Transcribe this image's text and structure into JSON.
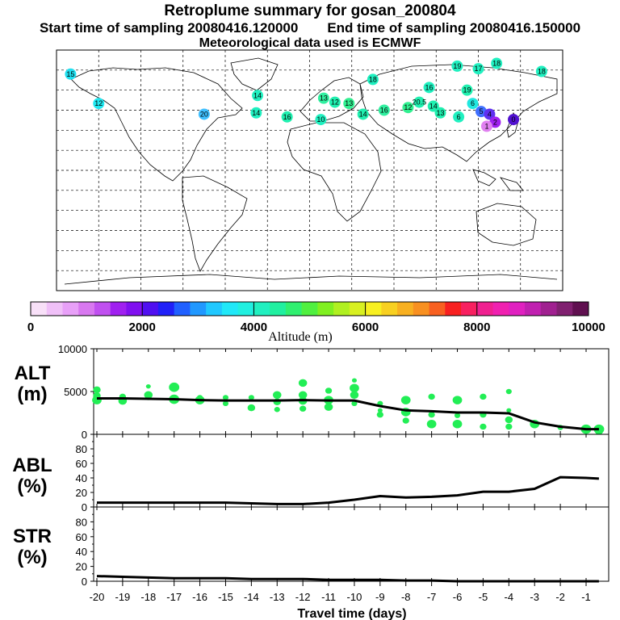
{
  "header": {
    "title": "Retroplume summary for gosan_200804",
    "start_label": "Start time of sampling 20080416.120000",
    "end_label": "End time of sampling 20080416.150000",
    "met_label": "Meteorological data used is ECMWF"
  },
  "colors": {
    "point_green": "#22ee55",
    "line": "#000000",
    "colorbar": [
      "#f8e0f8",
      "#f0c0f8",
      "#e8a0f8",
      "#d878f0",
      "#c050f0",
      "#a020f0",
      "#8010f0",
      "#5010f0",
      "#2020f8",
      "#2060ff",
      "#2098ff",
      "#20c8ff",
      "#20e8f8",
      "#20f0e0",
      "#20f0c0",
      "#20f0a0",
      "#30f070",
      "#50f040",
      "#80f020",
      "#b0f020",
      "#d8f020",
      "#f8f020",
      "#f8d020",
      "#f8b020",
      "#f89020",
      "#f86020",
      "#f82020",
      "#f82060",
      "#f02090",
      "#f020b0",
      "#e020c0",
      "#c020b0",
      "#a02090",
      "#802070",
      "#601050"
    ]
  },
  "map": {
    "sources": [
      {
        "label": "15",
        "lon": -170,
        "lat": 72,
        "color": "#20e0f0"
      },
      {
        "label": "12",
        "lon": -150,
        "lat": 50,
        "color": "#20e8f0"
      },
      {
        "label": "20",
        "lon": -75,
        "lat": 42,
        "color": "#40c0ff"
      },
      {
        "label": "14",
        "lon": -37,
        "lat": 56,
        "color": "#20f0c0"
      },
      {
        "label": "14",
        "lon": -38,
        "lat": 43,
        "color": "#20f0c0"
      },
      {
        "label": "16",
        "lon": -16,
        "lat": 40,
        "color": "#20f0b0"
      },
      {
        "label": "13",
        "lon": 10,
        "lat": 54,
        "color": "#30f0a0"
      },
      {
        "label": "12",
        "lon": 18,
        "lat": 51,
        "color": "#20f0b0"
      },
      {
        "label": "13",
        "lon": 28,
        "lat": 50,
        "color": "#30f090"
      },
      {
        "label": "10",
        "lon": 8,
        "lat": 38,
        "color": "#20f0c0"
      },
      {
        "label": "14",
        "lon": 38,
        "lat": 42,
        "color": "#20f0b0"
      },
      {
        "label": "16",
        "lon": 53,
        "lat": 45,
        "color": "#30f0a0"
      },
      {
        "label": "12",
        "lon": 70,
        "lat": 47,
        "color": "#30f090"
      },
      {
        "label": "20.5",
        "lon": 78,
        "lat": 51,
        "color": "#20f0b0"
      },
      {
        "label": "14",
        "lon": 88,
        "lat": 48,
        "color": "#20f0b0"
      },
      {
        "label": "13",
        "lon": 93,
        "lat": 43,
        "color": "#20f0b0"
      },
      {
        "label": "6",
        "lon": 106,
        "lat": 40,
        "color": "#20f0c0"
      },
      {
        "label": "19",
        "lon": 112,
        "lat": 60,
        "color": "#20f0b0"
      },
      {
        "label": "6",
        "lon": 116,
        "lat": 50,
        "color": "#20e8e0"
      },
      {
        "label": "5",
        "lon": 122,
        "lat": 44,
        "color": "#4070ff"
      },
      {
        "label": "4",
        "lon": 128,
        "lat": 42,
        "color": "#6030f0"
      },
      {
        "label": "2",
        "lon": 132,
        "lat": 36,
        "color": "#a020f0"
      },
      {
        "label": "1",
        "lon": 126,
        "lat": 33,
        "color": "#e080f0"
      },
      {
        "label": "0",
        "lon": 145,
        "lat": 38,
        "color": "#5010d0"
      },
      {
        "label": "19",
        "lon": 105,
        "lat": 78,
        "color": "#20f0c0"
      },
      {
        "label": "17",
        "lon": 120,
        "lat": 76,
        "color": "#20f0c0"
      },
      {
        "label": "18",
        "lon": 133,
        "lat": 80,
        "color": "#20f0c0"
      },
      {
        "label": "18",
        "lon": 165,
        "lat": 74,
        "color": "#20f0c0"
      },
      {
        "label": "16",
        "lon": 85,
        "lat": 62,
        "color": "#20f0c0"
      },
      {
        "label": "18",
        "lon": 45,
        "lat": 68,
        "color": "#20f0c0"
      }
    ]
  },
  "colorbar": {
    "tick_labels": [
      "0",
      "2000",
      "4000",
      "6000",
      "8000",
      "10000"
    ],
    "title": "Altitude (m)"
  },
  "chart_data": [
    {
      "type": "line",
      "panel": "ALT",
      "label_line1": "ALT",
      "label_line2": "(m)",
      "ylim": [
        0,
        10000
      ],
      "y_tick_labels": [
        "10000",
        "5000",
        "0"
      ],
      "x": [
        -20,
        -19,
        -18,
        -17,
        -16,
        -15,
        -14,
        -13,
        -12,
        -11,
        -10,
        -9,
        -8,
        -7,
        -6,
        -5,
        -4,
        -3,
        -2,
        -1,
        -0.5
      ],
      "values": [
        4200,
        4200,
        4150,
        4100,
        4000,
        3950,
        3950,
        3950,
        4000,
        3950,
        3950,
        3300,
        2800,
        2700,
        2550,
        2550,
        2450,
        1400,
        900,
        600,
        600
      ],
      "points": [
        [
          -20,
          4000
        ],
        [
          -20,
          4500
        ],
        [
          -20,
          5200
        ],
        [
          -19,
          3900
        ],
        [
          -19,
          4400
        ],
        [
          -18,
          4300
        ],
        [
          -18,
          4600
        ],
        [
          -18,
          5600
        ],
        [
          -17,
          4100
        ],
        [
          -17,
          5500
        ],
        [
          -16,
          4000
        ],
        [
          -16,
          4300
        ],
        [
          -15,
          3600
        ],
        [
          -15,
          4300
        ],
        [
          -14,
          4300
        ],
        [
          -14,
          3100
        ],
        [
          -13,
          4600
        ],
        [
          -13,
          3800
        ],
        [
          -13,
          2900
        ],
        [
          -12,
          4600
        ],
        [
          -12,
          3900
        ],
        [
          -12,
          3000
        ],
        [
          -11,
          5100
        ],
        [
          -11,
          4000
        ],
        [
          -11,
          3200
        ],
        [
          -10,
          4600
        ],
        [
          -10,
          3600
        ],
        [
          -10,
          5400
        ],
        [
          -9,
          3600
        ],
        [
          -9,
          2300
        ],
        [
          -9,
          2800
        ],
        [
          -8,
          4000
        ],
        [
          -8,
          2600
        ],
        [
          -8,
          1600
        ],
        [
          -7,
          4400
        ],
        [
          -7,
          2300
        ],
        [
          -7,
          1200
        ],
        [
          -6,
          4000
        ],
        [
          -6,
          2200
        ],
        [
          -6,
          1200
        ],
        [
          -5,
          4400
        ],
        [
          -5,
          2300
        ],
        [
          -5,
          900
        ],
        [
          -4,
          2800
        ],
        [
          -4,
          1700
        ],
        [
          -4,
          900
        ],
        [
          -4,
          5000
        ],
        [
          -3,
          1200
        ],
        [
          -2,
          800
        ],
        [
          -1,
          600
        ],
        [
          -0.5,
          600
        ],
        [
          -0.5,
          400
        ],
        [
          -12,
          6000
        ],
        [
          -10,
          6300
        ]
      ]
    },
    {
      "type": "line",
      "panel": "ABL",
      "label_line1": "ABL",
      "label_line2": "(%)",
      "ylim": [
        0,
        100
      ],
      "y_tick_labels": [
        "80",
        "60",
        "40",
        "20",
        "0"
      ],
      "x": [
        -20,
        -19,
        -18,
        -17,
        -16,
        -15,
        -14,
        -13,
        -12,
        -11,
        -10,
        -9,
        -8,
        -7,
        -6,
        -5,
        -4,
        -3,
        -2,
        -1,
        -0.5
      ],
      "values": [
        6,
        6,
        6,
        6,
        6,
        6,
        5,
        4,
        4,
        6,
        10,
        15,
        13,
        14,
        16,
        21,
        21,
        25,
        41,
        40,
        39
      ]
    },
    {
      "type": "line",
      "panel": "STR",
      "label_line1": "STR",
      "label_line2": "(%)",
      "ylim": [
        0,
        100
      ],
      "y_tick_labels": [
        "80",
        "60",
        "40",
        "20",
        "0"
      ],
      "x": [
        -20,
        -19,
        -18,
        -17,
        -16,
        -15,
        -14,
        -13,
        -12,
        -11,
        -10,
        -9,
        -8,
        -7,
        -6,
        -5,
        -4,
        -3,
        -2,
        -1,
        -0.5
      ],
      "values": [
        7,
        6,
        5,
        4,
        4,
        4,
        3,
        3,
        3,
        2,
        2,
        2,
        1,
        1,
        0,
        0,
        0,
        0,
        0,
        0,
        0
      ]
    }
  ],
  "x_axis": {
    "tick_labels": [
      "-20",
      "-19",
      "-18",
      "-17",
      "-16",
      "-15",
      "-14",
      "-13",
      "-12",
      "-11",
      "-10",
      "-9",
      "-8",
      "-7",
      "-6",
      "-5",
      "-4",
      "-3",
      "-2",
      "-1"
    ],
    "title": "Travel time (days)"
  }
}
